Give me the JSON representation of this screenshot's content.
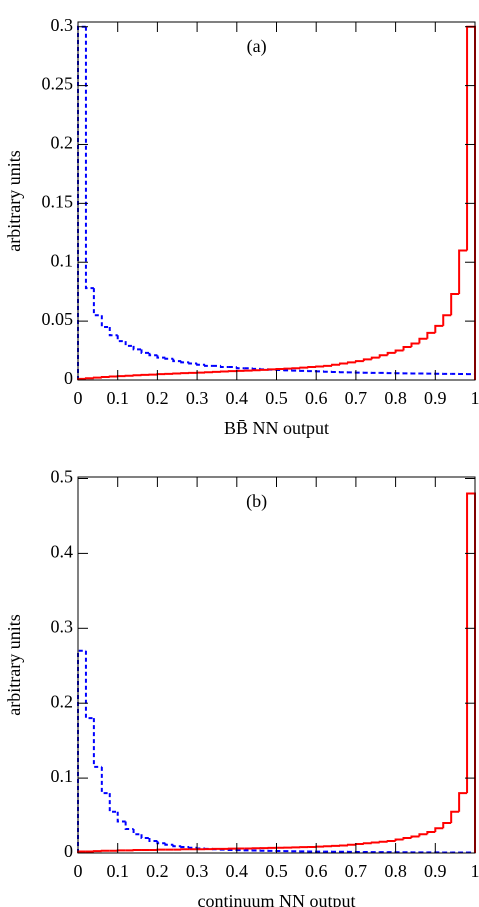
{
  "chart_data": [
    {
      "type": "histogram",
      "annotation": "(a)",
      "xlabel": "BB̄ NN output",
      "ylabel": "arbitrary units",
      "bins": [
        0,
        0.02,
        0.04,
        0.06,
        0.08,
        0.1,
        0.12,
        0.14,
        0.16,
        0.18,
        0.2,
        0.22,
        0.24,
        0.26,
        0.28,
        0.3,
        0.32,
        0.34,
        0.36,
        0.38,
        0.4,
        0.42,
        0.44,
        0.46,
        0.48,
        0.5,
        0.52,
        0.54,
        0.56,
        0.58,
        0.6,
        0.62,
        0.64,
        0.66,
        0.68,
        0.7,
        0.72,
        0.74,
        0.76,
        0.78,
        0.8,
        0.82,
        0.84,
        0.86,
        0.88,
        0.9,
        0.92,
        0.94,
        0.96,
        0.98,
        1
      ],
      "series": [
        {
          "color": "#0000ff",
          "style": "dashed",
          "values": [
            0.3,
            0.078,
            0.055,
            0.045,
            0.038,
            0.033,
            0.029,
            0.026,
            0.023,
            0.021,
            0.019,
            0.018,
            0.016,
            0.015,
            0.014,
            0.013,
            0.012,
            0.012,
            0.011,
            0.011,
            0.01,
            0.01,
            0.0095,
            0.009,
            0.0088,
            0.0085,
            0.0082,
            0.008,
            0.0078,
            0.0075,
            0.0073,
            0.007,
            0.0068,
            0.0066,
            0.0065,
            0.0063,
            0.0062,
            0.006,
            0.006,
            0.0058,
            0.0057,
            0.0056,
            0.0055,
            0.0055,
            0.0054,
            0.0053,
            0.0052,
            0.0052,
            0.0051,
            0.005
          ]
        },
        {
          "color": "#ff0000",
          "style": "solid",
          "values": [
            0.001,
            0.0015,
            0.002,
            0.0025,
            0.003,
            0.0033,
            0.0036,
            0.004,
            0.0043,
            0.0046,
            0.005,
            0.0052,
            0.0055,
            0.0058,
            0.006,
            0.0063,
            0.0066,
            0.0069,
            0.0072,
            0.0075,
            0.0078,
            0.008,
            0.0083,
            0.0086,
            0.009,
            0.0093,
            0.0097,
            0.01,
            0.0105,
            0.011,
            0.0115,
            0.012,
            0.013,
            0.014,
            0.015,
            0.016,
            0.0175,
            0.019,
            0.021,
            0.023,
            0.025,
            0.028,
            0.031,
            0.035,
            0.04,
            0.046,
            0.055,
            0.073,
            0.11,
            0.3
          ]
        }
      ],
      "xlim": [
        0,
        1
      ],
      "xticks": [
        0,
        0.1,
        0.2,
        0.3,
        0.4,
        0.5,
        0.6,
        0.7,
        0.8,
        0.9,
        1
      ],
      "ylim": [
        0,
        0.304
      ],
      "yticks": [
        0,
        0.05,
        0.1,
        0.15,
        0.2,
        0.25,
        0.3
      ]
    },
    {
      "type": "histogram",
      "annotation": "(b)",
      "xlabel": "continuum NN output",
      "ylabel": "arbitrary units",
      "bins": [
        0,
        0.02,
        0.04,
        0.06,
        0.08,
        0.1,
        0.12,
        0.14,
        0.16,
        0.18,
        0.2,
        0.22,
        0.24,
        0.26,
        0.28,
        0.3,
        0.32,
        0.34,
        0.36,
        0.38,
        0.4,
        0.42,
        0.44,
        0.46,
        0.48,
        0.5,
        0.52,
        0.54,
        0.56,
        0.58,
        0.6,
        0.62,
        0.64,
        0.66,
        0.68,
        0.7,
        0.72,
        0.74,
        0.76,
        0.78,
        0.8,
        0.82,
        0.84,
        0.86,
        0.88,
        0.9,
        0.92,
        0.94,
        0.96,
        0.98,
        1
      ],
      "series": [
        {
          "color": "#0000ff",
          "style": "dashed",
          "values": [
            0.27,
            0.18,
            0.115,
            0.08,
            0.055,
            0.042,
            0.032,
            0.025,
            0.02,
            0.016,
            0.013,
            0.011,
            0.009,
            0.008,
            0.007,
            0.006,
            0.0055,
            0.005,
            0.0045,
            0.004,
            0.0038,
            0.0035,
            0.0033,
            0.003,
            0.0028,
            0.0026,
            0.0025,
            0.0023,
            0.0022,
            0.002,
            0.0019,
            0.0018,
            0.0017,
            0.0016,
            0.0015,
            0.0014,
            0.0013,
            0.0012,
            0.0012,
            0.0011,
            0.001,
            0.001,
            0.0009,
            0.0009,
            0.0008,
            0.0008,
            0.0007,
            0.0007,
            0.0006,
            0.0006
          ]
        },
        {
          "color": "#ff0000",
          "style": "solid",
          "values": [
            0.002,
            0.002,
            0.0025,
            0.003,
            0.003,
            0.0035,
            0.0035,
            0.004,
            0.004,
            0.004,
            0.0045,
            0.0045,
            0.0045,
            0.005,
            0.005,
            0.005,
            0.0052,
            0.0055,
            0.0055,
            0.0058,
            0.006,
            0.006,
            0.0063,
            0.0065,
            0.0068,
            0.007,
            0.0072,
            0.0075,
            0.0078,
            0.008,
            0.0085,
            0.009,
            0.0095,
            0.01,
            0.011,
            0.012,
            0.013,
            0.014,
            0.015,
            0.016,
            0.018,
            0.02,
            0.022,
            0.025,
            0.028,
            0.033,
            0.04,
            0.055,
            0.08,
            0.48
          ]
        }
      ],
      "xlim": [
        0,
        1
      ],
      "xticks": [
        0,
        0.1,
        0.2,
        0.3,
        0.4,
        0.5,
        0.6,
        0.7,
        0.8,
        0.9,
        1
      ],
      "ylim": [
        0,
        0.502
      ],
      "yticks": [
        0,
        0.1,
        0.2,
        0.3,
        0.4,
        0.5
      ]
    }
  ]
}
